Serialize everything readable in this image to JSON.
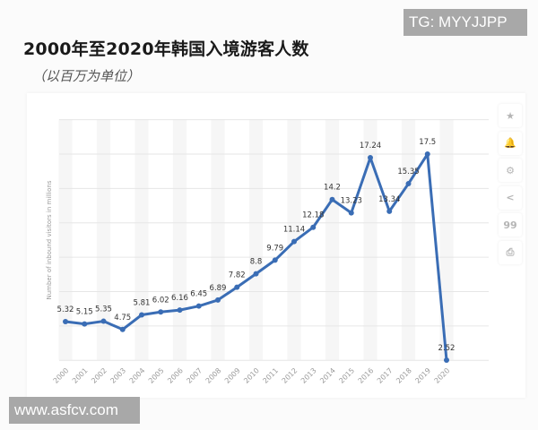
{
  "header": {
    "title": "2000年至2020年韩国入境游客人数",
    "subtitle": "（以百万为单位）"
  },
  "watermarks": {
    "top_right": "TG: MYYJJPP",
    "bottom_left": "www.asfcv.com"
  },
  "side_tools": [
    {
      "name": "star-icon",
      "glyph": "★"
    },
    {
      "name": "bell-icon",
      "glyph": "🔔"
    },
    {
      "name": "gear-icon",
      "glyph": "⚙"
    },
    {
      "name": "share-icon",
      "glyph": "<"
    },
    {
      "name": "quote-icon",
      "glyph": "99"
    },
    {
      "name": "print-icon",
      "glyph": "⎙"
    }
  ],
  "colors": {
    "line": "#3a6db5",
    "grid": "#e6e6e6",
    "band": "#f6f6f6",
    "label": "#333333",
    "axis_text": "#9a9a9a"
  },
  "chart_data": {
    "type": "line",
    "title": "2000年至2020年韩国入境游客人数",
    "subtitle": "（以百万为单位）",
    "xlabel": "",
    "ylabel": "Number of inbound visitors in millions",
    "categories": [
      "2000",
      "2001",
      "2002",
      "2003",
      "2004",
      "2005",
      "2006",
      "2007",
      "2008",
      "2009",
      "2010",
      "2011",
      "2012",
      "2013",
      "2014",
      "2015",
      "2016",
      "2017",
      "2018",
      "2019",
      "2020"
    ],
    "series": [
      {
        "name": "Number of inbound visitors in millions",
        "values": [
          5.32,
          5.15,
          5.35,
          4.75,
          5.81,
          6.02,
          6.16,
          6.45,
          6.89,
          7.82,
          8.8,
          9.79,
          11.14,
          12.18,
          14.2,
          13.23,
          17.24,
          13.34,
          15.35,
          17.5,
          2.52
        ]
      }
    ],
    "data_labels": [
      "5.32",
      "5.15",
      "5.35",
      "4.75",
      "5.81",
      "6.02",
      "6.16",
      "6.45",
      "6.89",
      "7.82",
      "8.8",
      "9.79",
      "11.14",
      "12.18",
      "14.2",
      "13.23",
      "17.24",
      "13.34",
      "15.35",
      "17.5",
      "2.52"
    ],
    "ylim": [
      2.5,
      20
    ],
    "y_gridlines": [
      2.5,
      5,
      7.5,
      10,
      12.5,
      15,
      17.5,
      20
    ],
    "y_tick_labels_visible": false,
    "grid": true,
    "legend": "none"
  }
}
